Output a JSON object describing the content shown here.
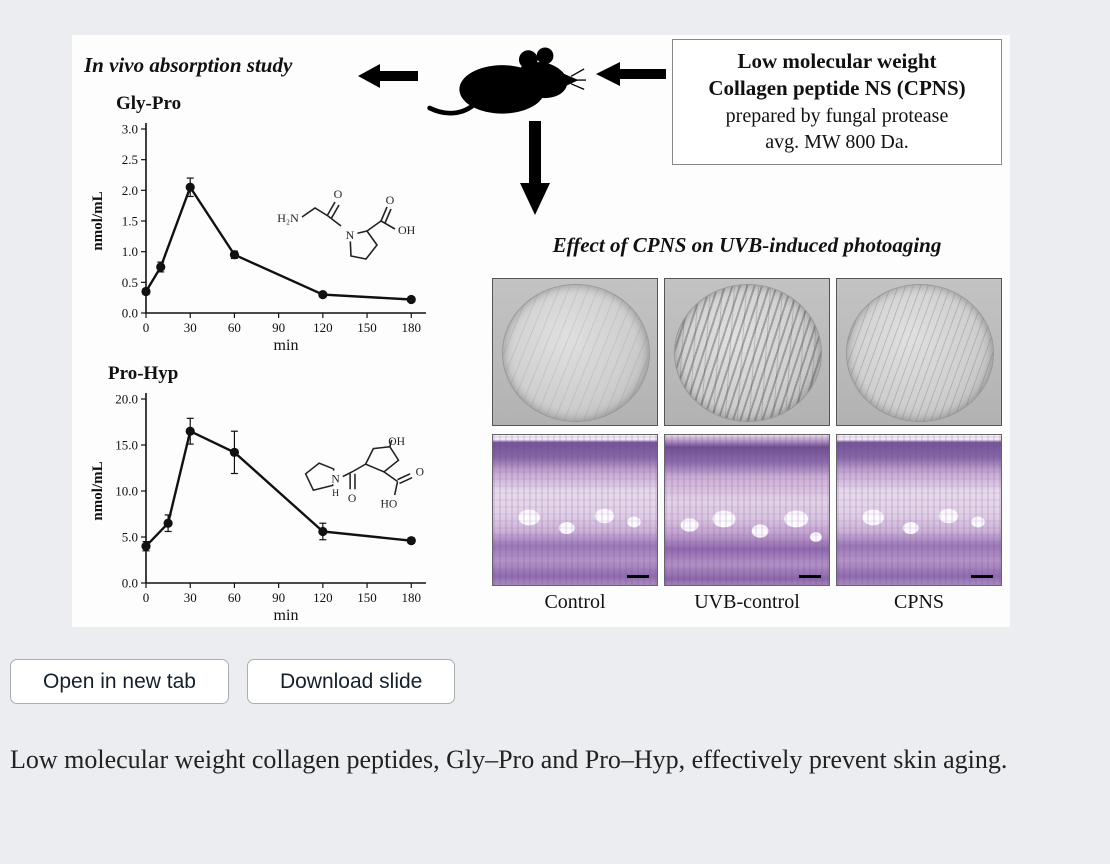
{
  "figure": {
    "invivo_title": "In vivo absorption study",
    "effect_title": "Effect of CPNS on UVB-induced photoaging",
    "box": {
      "line1": "Low molecular weight",
      "line2": "Collagen peptide NS (CPNS)",
      "line3": "prepared by fungal protease",
      "line4": "avg. MW 800 Da."
    },
    "panel_labels": [
      "Control",
      "UVB-control",
      "CPNS"
    ],
    "structures": {
      "gly_pro": {
        "a0": "H₂N",
        "a1": "O",
        "a2": "N",
        "a3": "O",
        "a4": "OH"
      },
      "pro_hyp": {
        "a0": "N",
        "a1": "H",
        "a2": "O",
        "a3": "OH",
        "a4": "O",
        "a5": "HO"
      }
    }
  },
  "chart_data": [
    {
      "type": "line",
      "title": "Gly-Pro",
      "xlabel": "min",
      "ylabel": "nmol/mL",
      "x": [
        0,
        10,
        30,
        60,
        120,
        180
      ],
      "values": [
        0.35,
        0.75,
        2.05,
        0.95,
        0.3,
        0.22
      ],
      "errors": [
        0.05,
        0.08,
        0.15,
        0.06,
        0.04,
        0.03
      ],
      "ylim": [
        0,
        3.0
      ],
      "yticks": [
        0.0,
        0.5,
        1.0,
        1.5,
        2.0,
        2.5,
        3.0
      ],
      "xticks": [
        0,
        30,
        60,
        90,
        120,
        150,
        180
      ],
      "grid": false,
      "legend": false
    },
    {
      "type": "line",
      "title": "Pro-Hyp",
      "xlabel": "min",
      "ylabel": "nmol/mL",
      "x": [
        0,
        15,
        30,
        60,
        120,
        180
      ],
      "values": [
        4.0,
        6.5,
        16.5,
        14.2,
        5.6,
        4.6
      ],
      "errors": [
        0.5,
        0.9,
        1.4,
        2.3,
        0.9,
        0.3
      ],
      "ylim": [
        0,
        20.0
      ],
      "yticks": [
        0.0,
        5.0,
        10.0,
        15.0,
        20.0
      ],
      "xticks": [
        0,
        30,
        60,
        90,
        120,
        150,
        180
      ],
      "grid": false,
      "legend": false
    }
  ],
  "buttons": {
    "open_in_new_tab": "Open in new tab",
    "download_slide": "Download slide"
  },
  "caption": "Low molecular weight collagen peptides, Gly–Pro and Pro–Hyp, effectively prevent skin aging.",
  "colors": {
    "page_background": "#ebedf1",
    "figure_background": "#fdfdfd",
    "histology_stain": "#8a66aa",
    "line_series": "#111111"
  }
}
